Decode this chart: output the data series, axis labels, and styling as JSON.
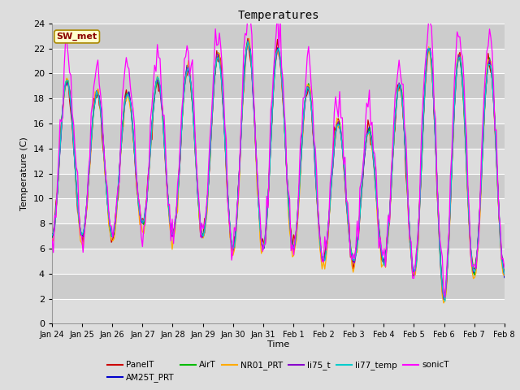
{
  "title": "Temperatures",
  "ylabel": "Temperature (C)",
  "xlabel": "Time",
  "ylim": [
    0,
    24
  ],
  "yticks": [
    0,
    2,
    4,
    6,
    8,
    10,
    12,
    14,
    16,
    18,
    20,
    22,
    24
  ],
  "xtick_labels": [
    "Jan 24",
    "Jan 25",
    "Jan 26",
    "Jan 27",
    "Jan 28",
    "Jan 29",
    "Jan 30",
    "Jan 31",
    "Feb 1",
    "Feb 2",
    "Feb 3",
    "Feb 4",
    "Feb 5",
    "Feb 6",
    "Feb 7",
    "Feb 8"
  ],
  "series_names": [
    "PanelT",
    "AM25T_PRT",
    "AirT",
    "NR01_PRT",
    "li75_t",
    "li77_temp",
    "sonicT"
  ],
  "series_colors": [
    "#cc0000",
    "#0000cc",
    "#00bb00",
    "#ffaa00",
    "#8800cc",
    "#00cccc",
    "#ff00ff"
  ],
  "annotation": "SW_met",
  "n_points": 336,
  "days": 15,
  "figsize": [
    6.4,
    4.8
  ],
  "dpi": 100
}
